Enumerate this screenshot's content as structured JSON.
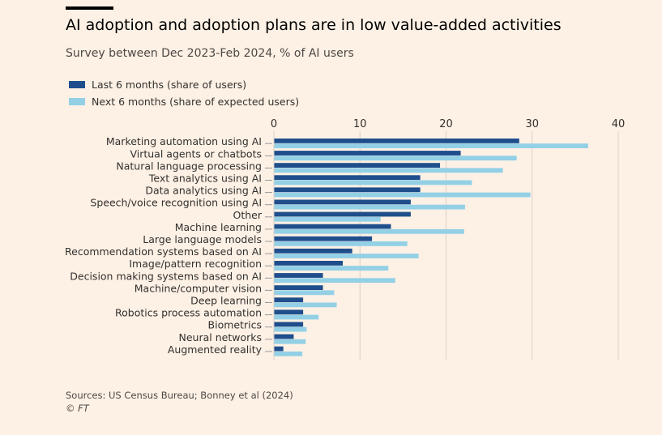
{
  "title": "AI adoption and adoption plans are in low value-added activities",
  "subtitle": "Survey between Dec 2023-Feb 2024, % of AI users",
  "footer": {
    "source": "Sources: US Census Bureau; Bonney et al (2024)",
    "copyright": "© FT"
  },
  "colors": {
    "series1": "#1f4e8c",
    "series2": "#93d0e6",
    "grid": "#d9cfc6",
    "text": "#33302e"
  },
  "chart_data": {
    "type": "bar",
    "orientation": "horizontal",
    "title": "AI adoption and adoption plans are in low value-added activities",
    "subtitle": "Survey between Dec 2023-Feb 2024, % of AI users",
    "xlim": [
      0,
      40
    ],
    "ticks": [
      0,
      10,
      20,
      30,
      40
    ],
    "xaxis_position": "top",
    "legend_position": "top-left",
    "grid": true,
    "categories": [
      "Marketing automation using AI",
      "Virtual agents or chatbots",
      "Natural language processing",
      "Text analytics using AI",
      "Data analytics using AI",
      "Speech/voice recognition using AI",
      "Other",
      "Machine learning",
      "Large language models",
      "Recommendation systems based on AI",
      "Image/pattern recognition",
      "Decision making systems based on AI",
      "Machine/computer vision",
      "Deep learning",
      "Robotics process automation",
      "Biometrics",
      "Neural networks",
      "Augmented reality"
    ],
    "series": [
      {
        "name": "Last 6 months (share of users)",
        "color": "#1f4e8c",
        "values": [
          28.5,
          21.7,
          19.3,
          17.0,
          17.0,
          15.9,
          15.9,
          13.6,
          11.4,
          9.1,
          8.0,
          5.7,
          5.7,
          3.4,
          3.4,
          3.4,
          2.3,
          1.1
        ]
      },
      {
        "name": "Next 6 months (share of expected users)",
        "color": "#93d0e6",
        "values": [
          36.5,
          28.2,
          26.6,
          23.0,
          29.8,
          22.2,
          12.4,
          22.1,
          15.5,
          16.8,
          13.3,
          14.1,
          7.0,
          7.3,
          5.2,
          3.8,
          3.7,
          3.3
        ]
      }
    ]
  }
}
